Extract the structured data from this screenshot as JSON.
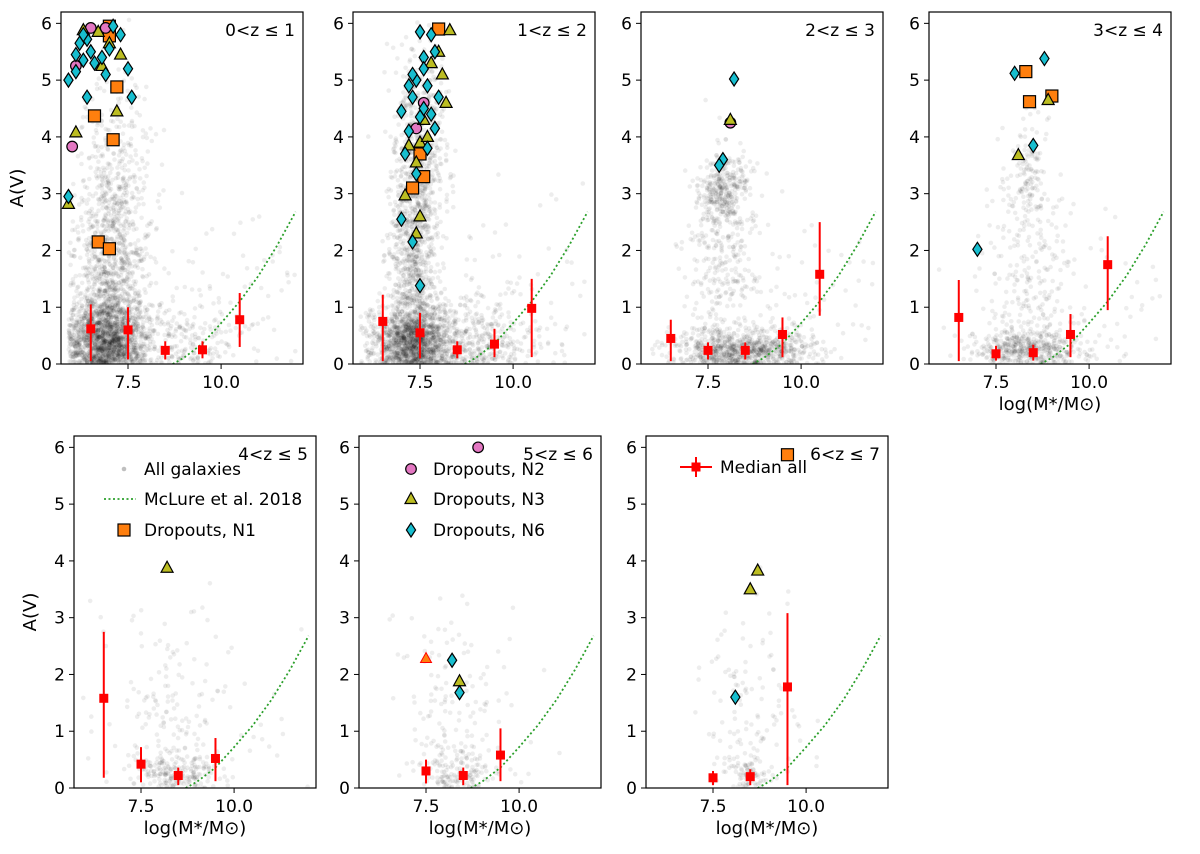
{
  "chart_data": {
    "type": "scatter",
    "xlabel": "log(M*/M⊙)",
    "ylabel": "A(V)",
    "xlim": [
      5.7,
      12.2
    ],
    "ylim": [
      0,
      6.2
    ],
    "xticks": [
      7.5,
      10.0
    ],
    "xtick_labels": [
      "7.5",
      "10.0"
    ],
    "yticks": [
      0,
      1,
      2,
      3,
      4,
      5,
      6
    ],
    "ytick_labels": [
      "0",
      "1",
      "2",
      "3",
      "4",
      "5",
      "6"
    ],
    "legend": {
      "all_galaxies": "All galaxies",
      "mclure": "McLure et al. 2018",
      "n1": "Dropouts, N1",
      "n2": "Dropouts, N2",
      "n3": "Dropouts, N3",
      "n6": "Dropouts, N6",
      "median": "Median all"
    },
    "colors": {
      "n1": "#ff7f0e",
      "n2": "#e377c2",
      "n3": "#bcbd22",
      "n6": "#17becf",
      "median": "#ff0000",
      "mclure": "#2ca02c",
      "cloud": "#000000"
    },
    "mclure_curve": {
      "x": [
        8.7,
        9.0,
        9.5,
        10.0,
        10.5,
        11.0,
        11.5,
        12.0
      ],
      "y": [
        0.0,
        0.11,
        0.36,
        0.72,
        1.1,
        1.55,
        2.08,
        2.68
      ]
    },
    "panels": [
      {
        "id": "p1",
        "label": "0<z ≤ 1",
        "show_ylabel": true,
        "show_xlabel": false,
        "show_legend": "",
        "median": [
          {
            "x": 6.5,
            "y": 0.62,
            "lo": 0.05,
            "hi": 1.05
          },
          {
            "x": 7.5,
            "y": 0.6,
            "lo": 0.08,
            "hi": 1.0
          },
          {
            "x": 8.5,
            "y": 0.24,
            "lo": 0.08,
            "hi": 0.4
          },
          {
            "x": 9.5,
            "y": 0.25,
            "lo": 0.1,
            "hi": 0.4
          },
          {
            "x": 10.5,
            "y": 0.78,
            "lo": 0.3,
            "hi": 1.25
          }
        ],
        "n1": [
          [
            7.0,
            5.95
          ],
          [
            7.0,
            5.78
          ],
          [
            7.2,
            4.88
          ],
          [
            6.6,
            4.37
          ],
          [
            7.1,
            3.95
          ],
          [
            6.7,
            2.15
          ],
          [
            7.0,
            2.03
          ]
        ],
        "n2": [
          [
            6.5,
            5.92
          ],
          [
            6.9,
            5.92
          ],
          [
            6.1,
            5.25
          ],
          [
            6.0,
            3.83
          ]
        ],
        "n3": [
          [
            6.3,
            5.88
          ],
          [
            6.7,
            5.85
          ],
          [
            7.0,
            5.65
          ],
          [
            7.3,
            5.45
          ],
          [
            6.8,
            5.25
          ],
          [
            7.2,
            4.45
          ],
          [
            6.1,
            4.08
          ],
          [
            5.9,
            2.82
          ]
        ],
        "n6": [
          [
            6.1,
            5.45
          ],
          [
            6.2,
            5.65
          ],
          [
            6.4,
            5.72
          ],
          [
            6.3,
            5.35
          ],
          [
            5.9,
            5.0
          ],
          [
            6.1,
            5.15
          ],
          [
            6.5,
            5.5
          ],
          [
            6.8,
            5.4
          ],
          [
            7.0,
            5.55
          ],
          [
            6.9,
            5.1
          ],
          [
            7.3,
            5.8
          ],
          [
            7.1,
            5.95
          ],
          [
            6.4,
            4.7
          ],
          [
            6.3,
            5.8
          ],
          [
            7.5,
            5.2
          ],
          [
            7.6,
            4.7
          ],
          [
            5.9,
            2.95
          ],
          [
            6.6,
            5.3
          ]
        ],
        "cloud": {
          "seed": 11,
          "groups": [
            {
              "n": 1400,
              "mx": 6.9,
              "sx": 0.55,
              "my": 0.45,
              "sy": 0.35
            },
            {
              "n": 900,
              "mx": 7.0,
              "sx": 0.45,
              "my": 1.5,
              "sy": 0.9
            },
            {
              "n": 300,
              "mx": 7.2,
              "sx": 0.5,
              "my": 3.3,
              "sy": 0.9
            },
            {
              "n": 300,
              "mx": 8.5,
              "sx": 1.1,
              "my": 0.4,
              "sy": 0.4
            },
            {
              "n": 60,
              "mx": 9.8,
              "sx": 1.3,
              "my": 1.2,
              "sy": 0.9
            }
          ]
        }
      },
      {
        "id": "p2",
        "label": "1<z ≤ 2",
        "show_ylabel": false,
        "show_xlabel": false,
        "show_legend": "",
        "median": [
          {
            "x": 6.5,
            "y": 0.75,
            "lo": 0.05,
            "hi": 1.22
          },
          {
            "x": 7.5,
            "y": 0.55,
            "lo": 0.1,
            "hi": 0.9
          },
          {
            "x": 8.5,
            "y": 0.25,
            "lo": 0.1,
            "hi": 0.4
          },
          {
            "x": 9.5,
            "y": 0.35,
            "lo": 0.12,
            "hi": 0.62
          },
          {
            "x": 10.5,
            "y": 0.98,
            "lo": 0.12,
            "hi": 1.5
          }
        ],
        "n1": [
          [
            8.0,
            5.9
          ],
          [
            7.5,
            3.7
          ],
          [
            7.6,
            3.3
          ],
          [
            7.3,
            3.1
          ]
        ],
        "n2": [
          [
            7.6,
            4.6
          ],
          [
            7.4,
            4.15
          ]
        ],
        "n3": [
          [
            8.3,
            5.88
          ],
          [
            8.0,
            5.5
          ],
          [
            7.8,
            5.3
          ],
          [
            8.1,
            5.1
          ],
          [
            8.2,
            4.6
          ],
          [
            7.6,
            4.3
          ],
          [
            7.5,
            3.9
          ],
          [
            7.2,
            3.85
          ],
          [
            7.7,
            4.0
          ],
          [
            7.4,
            3.55
          ],
          [
            7.1,
            2.97
          ],
          [
            7.5,
            2.6
          ],
          [
            7.4,
            2.3
          ]
        ],
        "n6": [
          [
            7.5,
            5.85
          ],
          [
            7.8,
            5.8
          ],
          [
            7.9,
            5.5
          ],
          [
            7.6,
            5.4
          ],
          [
            7.4,
            5.0
          ],
          [
            7.7,
            4.9
          ],
          [
            8.0,
            4.7
          ],
          [
            7.3,
            4.7
          ],
          [
            7.2,
            4.9
          ],
          [
            7.0,
            4.45
          ],
          [
            7.6,
            4.5
          ],
          [
            7.9,
            4.15
          ],
          [
            7.5,
            4.35
          ],
          [
            7.2,
            4.1
          ],
          [
            7.7,
            3.8
          ],
          [
            7.4,
            3.35
          ],
          [
            7.0,
            2.55
          ],
          [
            7.3,
            2.15
          ],
          [
            7.5,
            1.38
          ],
          [
            7.6,
            5.2
          ],
          [
            7.3,
            5.1
          ],
          [
            7.8,
            4.4
          ],
          [
            7.1,
            3.7
          ]
        ],
        "cloud": {
          "seed": 23,
          "groups": [
            {
              "n": 1300,
              "mx": 7.3,
              "sx": 0.55,
              "my": 0.4,
              "sy": 0.3
            },
            {
              "n": 900,
              "mx": 7.3,
              "sx": 0.35,
              "my": 2.0,
              "sy": 1.1
            },
            {
              "n": 400,
              "mx": 7.5,
              "sx": 0.35,
              "my": 4.0,
              "sy": 0.9
            },
            {
              "n": 400,
              "mx": 8.8,
              "sx": 1.0,
              "my": 0.4,
              "sy": 0.4
            },
            {
              "n": 80,
              "mx": 9.8,
              "sx": 1.3,
              "my": 1.3,
              "sy": 0.9
            }
          ]
        }
      },
      {
        "id": "p3",
        "label": "2<z ≤ 3",
        "show_ylabel": false,
        "show_xlabel": false,
        "show_legend": "",
        "median": [
          {
            "x": 6.5,
            "y": 0.45,
            "lo": 0.05,
            "hi": 0.78
          },
          {
            "x": 7.5,
            "y": 0.24,
            "lo": 0.08,
            "hi": 0.38
          },
          {
            "x": 8.5,
            "y": 0.24,
            "lo": 0.08,
            "hi": 0.38
          },
          {
            "x": 9.5,
            "y": 0.52,
            "lo": 0.12,
            "hi": 0.82
          },
          {
            "x": 10.5,
            "y": 1.58,
            "lo": 0.85,
            "hi": 2.5
          }
        ],
        "n1": [],
        "n2": [
          [
            8.1,
            4.25
          ]
        ],
        "n3": [
          [
            8.1,
            4.3
          ]
        ],
        "n6": [
          [
            8.2,
            5.02
          ],
          [
            7.9,
            3.6
          ],
          [
            7.8,
            3.5
          ]
        ],
        "cloud": {
          "seed": 37,
          "groups": [
            {
              "n": 800,
              "mx": 8.4,
              "sx": 0.9,
              "my": 0.25,
              "sy": 0.2
            },
            {
              "n": 350,
              "mx": 7.9,
              "sx": 0.35,
              "my": 3.0,
              "sy": 0.35
            },
            {
              "n": 250,
              "mx": 7.9,
              "sx": 0.5,
              "my": 1.6,
              "sy": 0.9
            },
            {
              "n": 80,
              "mx": 9.5,
              "sx": 1.3,
              "my": 1.0,
              "sy": 0.8
            }
          ]
        }
      },
      {
        "id": "p4",
        "label": "3<z ≤ 4",
        "show_ylabel": false,
        "show_xlabel": true,
        "show_legend": "",
        "median": [
          {
            "x": 6.5,
            "y": 0.82,
            "lo": 0.05,
            "hi": 1.48
          },
          {
            "x": 7.5,
            "y": 0.18,
            "lo": 0.06,
            "hi": 0.32
          },
          {
            "x": 8.5,
            "y": 0.2,
            "lo": 0.06,
            "hi": 0.34
          },
          {
            "x": 9.5,
            "y": 0.52,
            "lo": 0.12,
            "hi": 0.88
          },
          {
            "x": 10.5,
            "y": 1.75,
            "lo": 0.95,
            "hi": 2.25
          }
        ],
        "n1": [
          [
            8.3,
            5.15
          ],
          [
            8.4,
            4.62
          ],
          [
            9.0,
            4.72
          ]
        ],
        "n2": [],
        "n3": [
          [
            8.9,
            4.65
          ],
          [
            8.1,
            3.68
          ]
        ],
        "n6": [
          [
            8.0,
            5.12
          ],
          [
            8.8,
            5.38
          ],
          [
            8.5,
            3.85
          ],
          [
            7.0,
            2.02
          ]
        ],
        "cloud": {
          "seed": 53,
          "groups": [
            {
              "n": 450,
              "mx": 8.4,
              "sx": 0.8,
              "my": 0.25,
              "sy": 0.2
            },
            {
              "n": 140,
              "mx": 8.4,
              "sx": 0.3,
              "my": 3.3,
              "sy": 0.6
            },
            {
              "n": 200,
              "mx": 8.4,
              "sx": 0.7,
              "my": 1.4,
              "sy": 0.9
            },
            {
              "n": 60,
              "mx": 9.8,
              "sx": 1.3,
              "my": 1.3,
              "sy": 1.0
            }
          ]
        }
      },
      {
        "id": "p5",
        "label": "4<z ≤ 5",
        "show_ylabel": true,
        "show_xlabel": true,
        "show_legend": "a",
        "median": [
          {
            "x": 6.5,
            "y": 1.58,
            "lo": 0.18,
            "hi": 2.75
          },
          {
            "x": 7.5,
            "y": 0.42,
            "lo": 0.1,
            "hi": 0.72
          },
          {
            "x": 8.5,
            "y": 0.22,
            "lo": 0.05,
            "hi": 0.36
          },
          {
            "x": 9.5,
            "y": 0.52,
            "lo": 0.12,
            "hi": 0.88
          }
        ],
        "n1": [],
        "n2": [],
        "n3": [
          [
            8.2,
            3.88
          ]
        ],
        "n6": [],
        "cloud": {
          "seed": 71,
          "groups": [
            {
              "n": 180,
              "mx": 8.5,
              "sx": 0.6,
              "my": 0.25,
              "sy": 0.2
            },
            {
              "n": 150,
              "mx": 8.1,
              "sx": 0.8,
              "my": 1.2,
              "sy": 1.0
            },
            {
              "n": 30,
              "mx": 9.5,
              "sx": 1.2,
              "my": 1.0,
              "sy": 0.8
            }
          ]
        }
      },
      {
        "id": "p6",
        "label": "5<z ≤ 6",
        "show_ylabel": false,
        "show_xlabel": true,
        "show_legend": "b",
        "median": [
          {
            "x": 7.5,
            "y": 0.3,
            "lo": 0.08,
            "hi": 0.5
          },
          {
            "x": 8.5,
            "y": 0.22,
            "lo": 0.05,
            "hi": 0.36
          },
          {
            "x": 9.5,
            "y": 0.58,
            "lo": 0.12,
            "hi": 1.05
          }
        ],
        "n1": [],
        "n2": [
          [
            8.9,
            6.0
          ]
        ],
        "n3": [
          [
            8.4,
            1.88
          ]
        ],
        "n6": [
          [
            8.2,
            2.25
          ],
          [
            8.4,
            1.68
          ]
        ],
        "extra_triangle_n1": [
          [
            7.5,
            2.28
          ]
        ],
        "cloud": {
          "seed": 89,
          "groups": [
            {
              "n": 130,
              "mx": 8.4,
              "sx": 0.5,
              "my": 0.3,
              "sy": 0.25
            },
            {
              "n": 120,
              "mx": 8.2,
              "sx": 0.7,
              "my": 1.3,
              "sy": 1.0
            },
            {
              "n": 20,
              "mx": 9.4,
              "sx": 1.1,
              "my": 1.0,
              "sy": 0.8
            }
          ]
        }
      },
      {
        "id": "p7",
        "label": "6<z ≤ 7",
        "show_ylabel": false,
        "show_xlabel": true,
        "show_legend": "c",
        "median": [
          {
            "x": 7.5,
            "y": 0.18,
            "lo": 0.05,
            "hi": 0.3
          },
          {
            "x": 8.5,
            "y": 0.2,
            "lo": 0.05,
            "hi": 0.33
          },
          {
            "x": 9.5,
            "y": 1.78,
            "lo": 0.05,
            "hi": 3.08
          }
        ],
        "n1": [
          [
            9.5,
            5.87
          ]
        ],
        "n2": [],
        "n3": [
          [
            8.5,
            3.5
          ],
          [
            8.7,
            3.83
          ]
        ],
        "n6": [
          [
            8.1,
            1.6
          ]
        ],
        "cloud": {
          "seed": 97,
          "groups": [
            {
              "n": 90,
              "mx": 8.3,
              "sx": 0.4,
              "my": 0.25,
              "sy": 0.2
            },
            {
              "n": 90,
              "mx": 8.3,
              "sx": 0.6,
              "my": 1.5,
              "sy": 1.1
            },
            {
              "n": 15,
              "mx": 9.3,
              "sx": 1.1,
              "my": 1.2,
              "sy": 1.0
            }
          ]
        }
      }
    ]
  }
}
